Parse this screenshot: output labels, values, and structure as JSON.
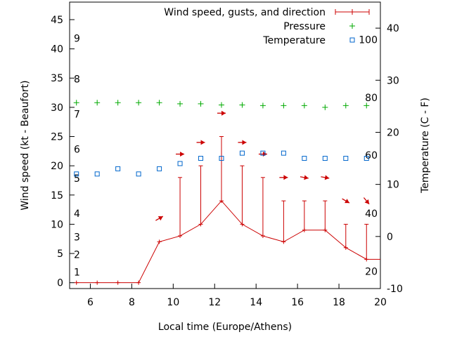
{
  "chart_data": {
    "type": "line",
    "title": "",
    "xlabel": "Local time (Europe/Athens)",
    "ylabel": "Wind speed (kt - Beaufort)",
    "y2label": "Temperature (C - F)",
    "xlim": [
      5,
      20
    ],
    "ylim": [
      -1,
      48
    ],
    "y2lim": [
      -10,
      45
    ],
    "xticks": [
      6,
      8,
      10,
      12,
      14,
      16,
      18,
      20
    ],
    "yticks": [
      0,
      5,
      10,
      15,
      20,
      25,
      30,
      35,
      40,
      45
    ],
    "y2ticks": [
      -10,
      0,
      10,
      20,
      30,
      40
    ],
    "beaufort_labels": [
      {
        "label": "1",
        "kt": 1
      },
      {
        "label": "2",
        "kt": 4
      },
      {
        "label": "3",
        "kt": 7
      },
      {
        "label": "4",
        "kt": 11
      },
      {
        "label": "5",
        "kt": 17
      },
      {
        "label": "6",
        "kt": 22
      },
      {
        "label": "7",
        "kt": 28
      },
      {
        "label": "8",
        "kt": 34
      },
      {
        "label": "9",
        "kt": 41
      }
    ],
    "fahrenheit_labels": [
      {
        "label": "20",
        "c": -6.7
      },
      {
        "label": "40",
        "c": 4.4
      },
      {
        "label": "60",
        "c": 15.6
      },
      {
        "label": "80",
        "c": 26.7
      },
      {
        "label": "100",
        "c": 37.8
      }
    ],
    "grid": false,
    "legend_position": "top-right",
    "series": [
      {
        "name": "Wind speed, gusts, and direction",
        "color": "#cc0000",
        "axis": "left",
        "x": [
          5.33,
          6.33,
          7.33,
          8.33,
          9.33,
          10.33,
          11.33,
          12.33,
          13.33,
          14.33,
          15.33,
          16.33,
          17.33,
          18.33,
          19.33,
          20
        ],
        "wind": [
          0,
          0,
          0,
          0,
          7,
          8,
          10,
          14,
          10,
          8,
          7,
          9,
          9,
          6,
          4,
          4
        ],
        "gust": [
          null,
          null,
          null,
          null,
          null,
          18,
          20,
          25,
          20,
          18,
          14,
          14,
          14,
          10,
          10,
          null
        ],
        "direction_deg": [
          null,
          null,
          null,
          null,
          240,
          270,
          270,
          270,
          270,
          270,
          270,
          280,
          280,
          300,
          320,
          null
        ]
      },
      {
        "name": "Pressure",
        "color": "#00aa00",
        "axis": "left",
        "x": [
          5.33,
          6.33,
          7.33,
          8.33,
          9.33,
          10.33,
          11.33,
          12.33,
          13.33,
          14.33,
          15.33,
          16.33,
          17.33,
          18.33,
          19.33
        ],
        "values": [
          30.8,
          30.8,
          30.8,
          30.8,
          30.8,
          30.6,
          30.6,
          30.4,
          30.4,
          30.3,
          30.3,
          30.3,
          30.0,
          30.3,
          30.3
        ]
      },
      {
        "name": "Temperature",
        "color": "#0066cc",
        "axis": "right",
        "x": [
          5.33,
          6.33,
          7.33,
          8.33,
          9.33,
          10.33,
          11.33,
          12.33,
          13.33,
          14.33,
          15.33,
          16.33,
          17.33,
          18.33,
          19.33
        ],
        "values": [
          12,
          12,
          13,
          12,
          13,
          14,
          15,
          15,
          16,
          16,
          16,
          15,
          15,
          15,
          15
        ]
      }
    ]
  }
}
